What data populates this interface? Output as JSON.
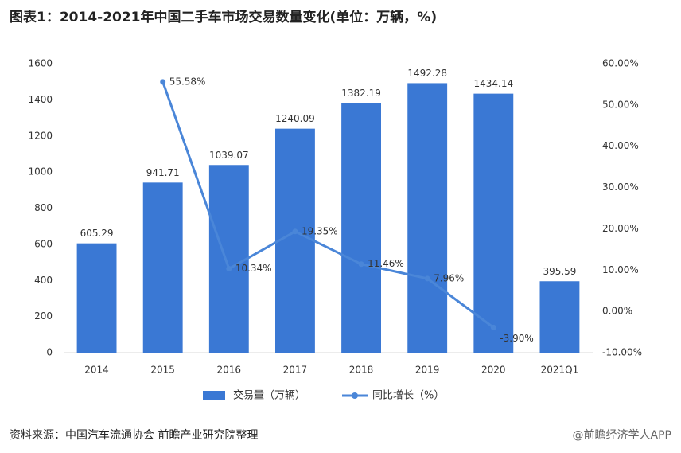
{
  "chart_data": {
    "type": "bar_line",
    "title": "图表1：2014-2021年中国二手车市场交易数量变化(单位：万辆，%)",
    "categories": [
      "2014",
      "2015",
      "2016",
      "2017",
      "2018",
      "2019",
      "2020",
      "2021Q1"
    ],
    "series": [
      {
        "name": "交易量（万辆）",
        "color": "#3a78d4",
        "type": "bar",
        "axis": "y",
        "values": [
          605.29,
          941.71,
          1039.07,
          1240.09,
          1382.19,
          1492.28,
          1434.14,
          395.59
        ]
      },
      {
        "name": "同比增长（%）",
        "color": "#4a86d8",
        "type": "line",
        "axis": "y2",
        "values": [
          null,
          55.58,
          10.34,
          19.35,
          11.46,
          7.96,
          -3.9,
          null
        ],
        "value_labels": [
          null,
          "55.58%",
          "10.34%",
          "19.35%",
          "11.46%",
          "7.96%",
          "-3.90%",
          null
        ]
      }
    ],
    "ylim": [
      0,
      1600
    ],
    "yticks": [
      0,
      200,
      400,
      600,
      800,
      1000,
      1200,
      1400,
      1600
    ],
    "y2lim": [
      -10,
      60
    ],
    "y2ticks": [
      {
        "value": -10,
        "label": "-10.00%"
      },
      {
        "value": 0,
        "label": "0.00%"
      },
      {
        "value": 10,
        "label": "10.00%"
      },
      {
        "value": 20,
        "label": "20.00%"
      },
      {
        "value": 30,
        "label": "30.00%"
      },
      {
        "value": 40,
        "label": "40.00%"
      },
      {
        "value": 50,
        "label": "50.00%"
      },
      {
        "value": 60,
        "label": "60.00%"
      }
    ],
    "legend": "bottom",
    "source": "资料来源：中国汽车流通协会 前瞻产业研究院整理",
    "watermark": "@前瞻经济学人APP"
  }
}
